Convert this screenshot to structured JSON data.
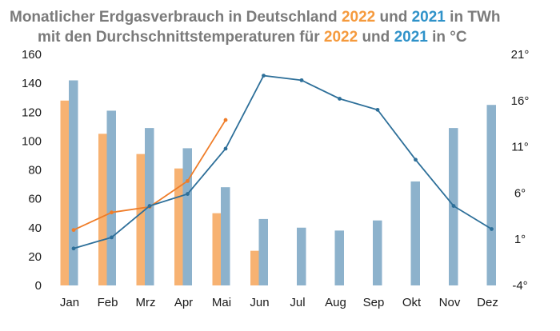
{
  "chart_data": {
    "type": "bar+line",
    "title_line1": {
      "pre": "Monatlicher Erdgasverbrauch in Deutschland ",
      "y1": "2022",
      "mid": " und ",
      "y2": "2021",
      "post": " in TWh"
    },
    "title_line2": {
      "pre": "mit den Durchschnittstemperaturen für ",
      "y1": "2022",
      "mid": " und ",
      "y2": "2021",
      "post": " in °C"
    },
    "categories": [
      "Jan",
      "Feb",
      "Mrz",
      "Apr",
      "Mai",
      "Jun",
      "Jul",
      "Aug",
      "Sep",
      "Okt",
      "Nov",
      "Dez"
    ],
    "bars": [
      {
        "name": "2022",
        "color": "#f7b272",
        "values": [
          128,
          105,
          91,
          81,
          50,
          24,
          null,
          null,
          null,
          null,
          null,
          null
        ]
      },
      {
        "name": "2021",
        "color": "#8db2cc",
        "values": [
          142,
          121,
          109,
          95,
          68,
          46,
          40,
          38,
          45,
          72,
          109,
          125
        ]
      }
    ],
    "lines": [
      {
        "name": "2022",
        "color": "#ef7d29",
        "values": [
          2.0,
          3.9,
          4.5,
          7.3,
          13.9,
          null,
          null,
          null,
          null,
          null,
          null,
          null
        ]
      },
      {
        "name": "2021",
        "color": "#2d6f99",
        "values": [
          0.0,
          1.2,
          4.6,
          5.9,
          10.8,
          18.7,
          18.2,
          16.2,
          15.0,
          9.6,
          4.6,
          2.1
        ]
      }
    ],
    "y_left": {
      "min": 0,
      "max": 160,
      "ticks": [
        "0",
        "20",
        "40",
        "60",
        "80",
        "100",
        "120",
        "140",
        "160"
      ]
    },
    "y_right": {
      "min": -4,
      "max": 21,
      "ticks": [
        "-4°",
        "1°",
        "6°",
        "11°",
        "16°",
        "21°"
      ],
      "values": [
        -4,
        1,
        6,
        11,
        16,
        21
      ]
    },
    "colors": {
      "year_2022": "#f59a3d",
      "year_2021": "#2f92c9",
      "title_gray": "#7a7a7a"
    },
    "grid": false
  }
}
